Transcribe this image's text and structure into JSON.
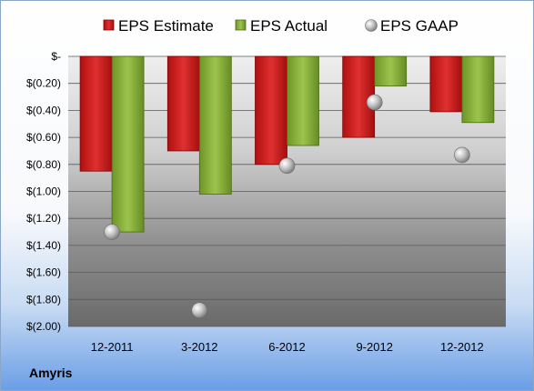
{
  "chart_data": {
    "type": "bar",
    "categories": [
      "12-2011",
      "3-2012",
      "6-2012",
      "9-2012",
      "12-2012"
    ],
    "series": [
      {
        "name": "EPS Estimate",
        "kind": "bar",
        "color": "#d42020",
        "values": [
          -0.85,
          -0.7,
          -0.8,
          -0.6,
          -0.41
        ]
      },
      {
        "name": "EPS Actual",
        "kind": "bar",
        "color": "#8cb43c",
        "values": [
          -1.3,
          -1.02,
          -0.66,
          -0.22,
          -0.49
        ]
      },
      {
        "name": "EPS GAAP",
        "kind": "marker",
        "color": "#a8a8a8",
        "values": [
          -1.3,
          -1.88,
          -0.81,
          -0.34,
          -0.73
        ]
      }
    ],
    "yticks": [
      "$-",
      "$(0.20)",
      "$(0.40)",
      "$(0.60)",
      "$(0.80)",
      "$(1.00)",
      "$(1.20)",
      "$(1.40)",
      "$(1.60)",
      "$(1.80)",
      "$(2.00)"
    ],
    "ylim": [
      -2.0,
      0
    ],
    "grid": true,
    "legend": "top"
  },
  "company": "Amyris"
}
